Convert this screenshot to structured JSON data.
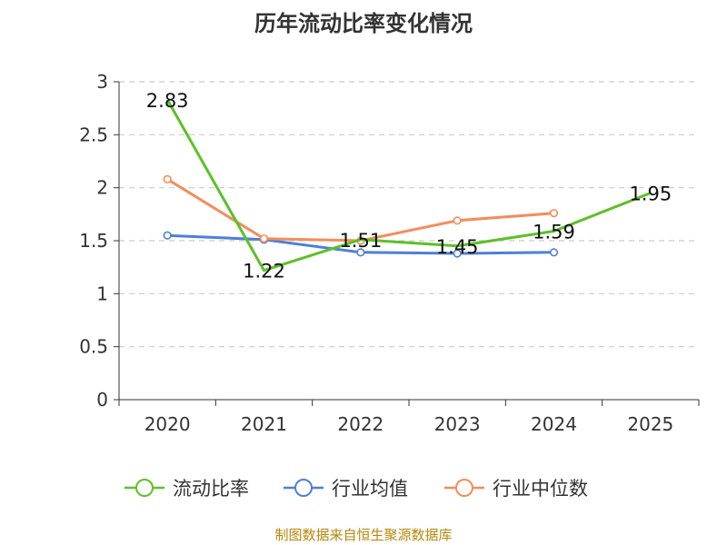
{
  "chart_data": {
    "type": "line",
    "title": "历年流动比率变化情况",
    "categories": [
      "2020",
      "2021",
      "2022",
      "2023",
      "2024",
      "2025"
    ],
    "ylim": [
      0,
      3
    ],
    "yticks": [
      "0",
      "0.5",
      "1",
      "1.5",
      "2",
      "2.5",
      "3"
    ],
    "grid": true,
    "legend_position": "bottom",
    "series": [
      {
        "name": "流动比率",
        "color": "#5cc127",
        "values": [
          2.83,
          1.22,
          1.51,
          1.45,
          1.59,
          1.95
        ],
        "labels": [
          "2.83",
          "1.22",
          "1.51",
          "1.45",
          "1.59",
          "1.95"
        ]
      },
      {
        "name": "行业均值",
        "color": "#4e7fd8",
        "values": [
          1.55,
          1.51,
          1.39,
          1.38,
          1.39,
          null
        ]
      },
      {
        "name": "行业中位数",
        "color": "#f48d5a",
        "values": [
          2.08,
          1.52,
          1.5,
          1.69,
          1.76,
          null
        ]
      }
    ]
  },
  "footer": {
    "source": "制图数据来自恒生聚源数据库"
  }
}
